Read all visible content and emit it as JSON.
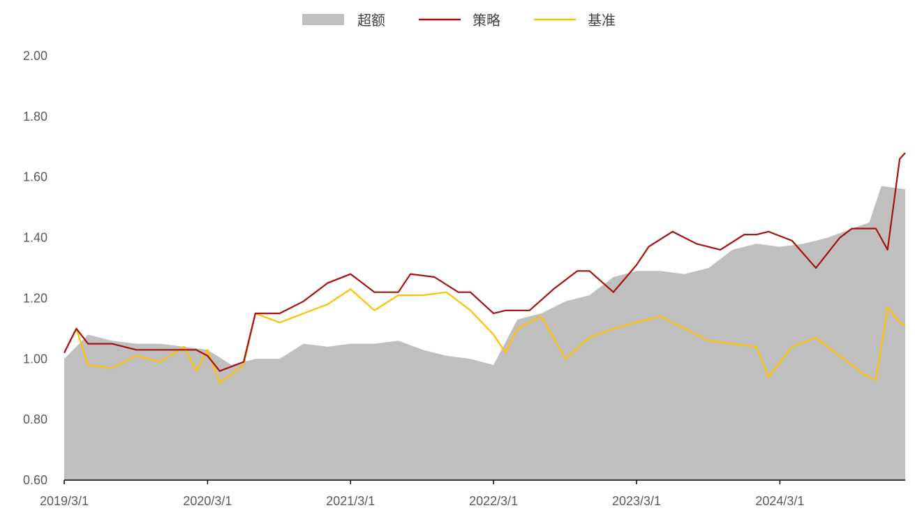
{
  "chart_data": {
    "type": "line",
    "title": "",
    "xlabel": "",
    "ylabel": "",
    "ylim": [
      0.6,
      2.0
    ],
    "yticks": [
      "0.60",
      "0.80",
      "1.00",
      "1.20",
      "1.40",
      "1.60",
      "1.80",
      "2.00"
    ],
    "xticks": [
      "2019/3/1",
      "2020/3/1",
      "2021/3/1",
      "2022/3/1",
      "2023/3/1",
      "2024/3/1"
    ],
    "xrange": [
      "2019/3/1",
      "2025/1/15"
    ],
    "grid": false,
    "legend": "top",
    "colors": {
      "excess": "#bfbfbf",
      "strategy": "#a50f0f",
      "benchmark": "#ffc000"
    },
    "series": [
      {
        "name": "超额",
        "kind": "area",
        "x": [
          "2019/3/1",
          "2019/5/1",
          "2019/7/1",
          "2019/9/1",
          "2019/11/1",
          "2020/1/1",
          "2020/3/1",
          "2020/5/1",
          "2020/7/1",
          "2020/9/1",
          "2020/11/1",
          "2021/1/1",
          "2021/3/1",
          "2021/5/1",
          "2021/7/1",
          "2021/9/1",
          "2021/11/1",
          "2022/1/1",
          "2022/3/1",
          "2022/5/1",
          "2022/7/1",
          "2022/9/1",
          "2022/11/1",
          "2023/1/1",
          "2023/3/1",
          "2023/5/1",
          "2023/7/1",
          "2023/9/1",
          "2023/11/1",
          "2024/1/1",
          "2024/3/1",
          "2024/5/1",
          "2024/7/1",
          "2024/9/1",
          "2024/10/15",
          "2024/11/15",
          "2025/1/15"
        ],
        "values": [
          1.0,
          1.08,
          1.06,
          1.05,
          1.05,
          1.04,
          1.03,
          0.98,
          1.0,
          1.0,
          1.05,
          1.04,
          1.05,
          1.05,
          1.06,
          1.03,
          1.01,
          1.0,
          0.98,
          1.13,
          1.15,
          1.19,
          1.21,
          1.27,
          1.29,
          1.29,
          1.28,
          1.3,
          1.36,
          1.38,
          1.37,
          1.38,
          1.4,
          1.43,
          1.45,
          1.57,
          1.56
        ]
      },
      {
        "name": "策略",
        "kind": "line",
        "x": [
          "2019/3/1",
          "2019/4/1",
          "2019/5/1",
          "2019/7/1",
          "2019/9/1",
          "2019/11/1",
          "2020/1/1",
          "2020/2/1",
          "2020/3/1",
          "2020/4/1",
          "2020/6/1",
          "2020/7/1",
          "2020/9/1",
          "2020/11/1",
          "2021/1/1",
          "2021/3/1",
          "2021/5/1",
          "2021/7/1",
          "2021/8/1",
          "2021/10/1",
          "2021/12/1",
          "2022/1/1",
          "2022/3/1",
          "2022/4/1",
          "2022/6/1",
          "2022/8/1",
          "2022/10/1",
          "2022/11/1",
          "2023/1/1",
          "2023/3/1",
          "2023/4/1",
          "2023/6/1",
          "2023/8/1",
          "2023/10/1",
          "2023/12/1",
          "2024/1/1",
          "2024/2/1",
          "2024/4/1",
          "2024/6/1",
          "2024/8/1",
          "2024/9/1",
          "2024/10/1",
          "2024/11/1",
          "2024/12/1",
          "2025/1/1",
          "2025/1/15"
        ],
        "values": [
          1.02,
          1.1,
          1.05,
          1.05,
          1.03,
          1.03,
          1.03,
          1.03,
          1.01,
          0.96,
          0.99,
          1.15,
          1.15,
          1.19,
          1.25,
          1.28,
          1.22,
          1.22,
          1.28,
          1.27,
          1.22,
          1.22,
          1.15,
          1.16,
          1.16,
          1.23,
          1.29,
          1.29,
          1.22,
          1.31,
          1.37,
          1.42,
          1.38,
          1.36,
          1.41,
          1.41,
          1.42,
          1.39,
          1.3,
          1.4,
          1.43,
          1.43,
          1.43,
          1.36,
          1.66,
          1.68
        ]
      },
      {
        "name": "基准",
        "kind": "line",
        "x": [
          "2019/3/1",
          "2019/4/1",
          "2019/5/1",
          "2019/7/1",
          "2019/9/1",
          "2019/11/1",
          "2020/1/1",
          "2020/2/1",
          "2020/3/1",
          "2020/4/1",
          "2020/6/1",
          "2020/7/1",
          "2020/9/1",
          "2020/11/1",
          "2021/1/1",
          "2021/3/1",
          "2021/5/1",
          "2021/7/1",
          "2021/9/1",
          "2021/11/1",
          "2022/1/1",
          "2022/3/1",
          "2022/4/1",
          "2022/5/1",
          "2022/7/1",
          "2022/9/1",
          "2022/11/1",
          "2023/1/1",
          "2023/3/1",
          "2023/5/1",
          "2023/7/1",
          "2023/9/1",
          "2023/11/1",
          "2024/1/1",
          "2024/2/1",
          "2024/4/1",
          "2024/6/1",
          "2024/8/1",
          "2024/10/1",
          "2024/11/1",
          "2024/12/1",
          "2025/1/1",
          "2025/1/15"
        ],
        "values": [
          1.02,
          1.1,
          0.98,
          0.97,
          1.01,
          0.99,
          1.04,
          0.96,
          1.03,
          0.92,
          0.98,
          1.15,
          1.12,
          1.15,
          1.18,
          1.23,
          1.16,
          1.21,
          1.21,
          1.22,
          1.16,
          1.08,
          1.02,
          1.1,
          1.14,
          1.0,
          1.07,
          1.1,
          1.12,
          1.14,
          1.1,
          1.06,
          1.05,
          1.04,
          0.94,
          1.04,
          1.07,
          1.01,
          0.95,
          0.93,
          1.17,
          1.12,
          1.11
        ]
      }
    ]
  }
}
